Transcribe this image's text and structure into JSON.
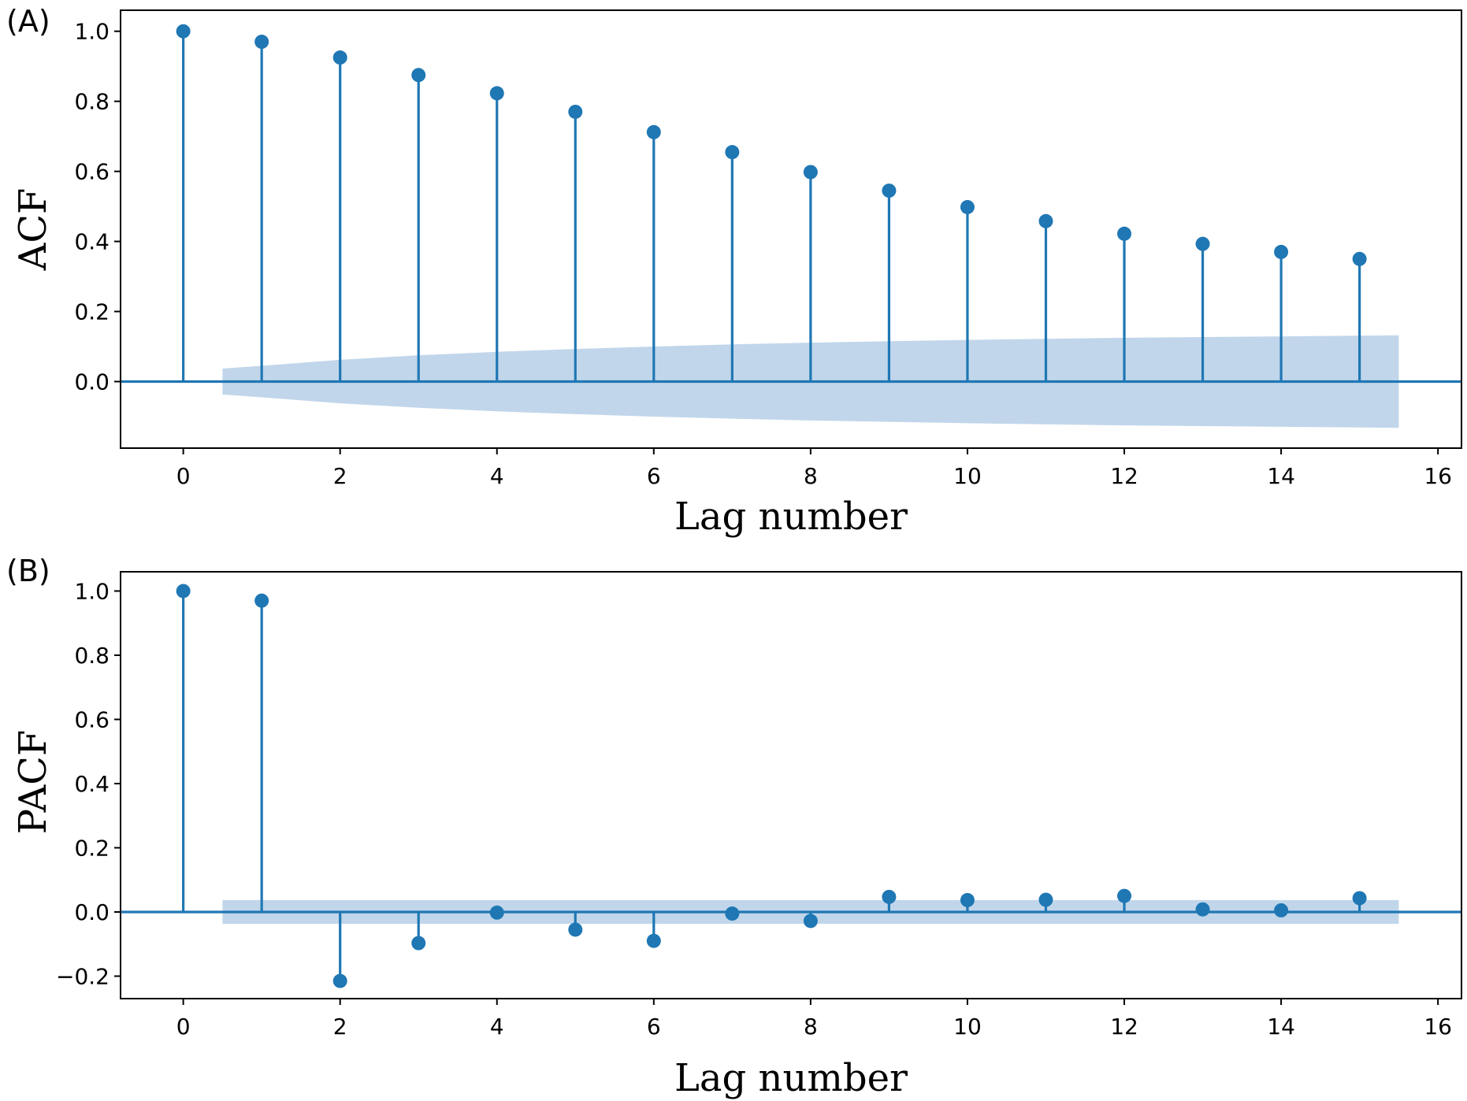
{
  "colors": {
    "stem": "#1f77b4",
    "confidence_band": "#c1d6ea",
    "axis": "#000000"
  },
  "chart_data": [
    {
      "type": "stem",
      "panel_label": "(A)",
      "xlabel": "Lag number",
      "ylabel": "ACF",
      "xlim": [
        -0.8,
        16.3
      ],
      "ylim": [
        -0.19,
        1.06
      ],
      "xticks": [
        0,
        2,
        4,
        6,
        8,
        10,
        12,
        14,
        16
      ],
      "xtick_labels": [
        "0",
        "2",
        "4",
        "6",
        "8",
        "10",
        "12",
        "14",
        "16"
      ],
      "yticks": [
        0.0,
        0.2,
        0.4,
        0.6,
        0.8,
        1.0
      ],
      "ytick_labels": [
        "0.0",
        "0.2",
        "0.4",
        "0.6",
        "0.8",
        "1.0"
      ],
      "x": [
        0,
        1,
        2,
        3,
        4,
        5,
        6,
        7,
        8,
        9,
        10,
        11,
        12,
        13,
        14,
        15
      ],
      "values": [
        1.0,
        0.97,
        0.925,
        0.875,
        0.823,
        0.77,
        0.712,
        0.655,
        0.598,
        0.545,
        0.498,
        0.458,
        0.422,
        0.393,
        0.37,
        0.35
      ],
      "confidence_band": {
        "x": [
          0.5,
          1,
          2,
          3,
          4,
          5,
          6,
          7,
          8,
          9,
          10,
          11,
          12,
          13,
          14,
          15,
          15.5
        ],
        "upper": [
          0.037,
          0.045,
          0.062,
          0.075,
          0.085,
          0.093,
          0.1,
          0.106,
          0.111,
          0.115,
          0.119,
          0.122,
          0.125,
          0.127,
          0.129,
          0.131,
          0.132
        ],
        "lower": [
          -0.037,
          -0.045,
          -0.062,
          -0.075,
          -0.085,
          -0.093,
          -0.1,
          -0.106,
          -0.111,
          -0.115,
          -0.119,
          -0.122,
          -0.125,
          -0.127,
          -0.129,
          -0.131,
          -0.132
        ]
      },
      "grid": false
    },
    {
      "type": "stem",
      "panel_label": "(B)",
      "xlabel": "Lag number",
      "ylabel": "PACF",
      "xlim": [
        -0.8,
        16.3
      ],
      "ylim": [
        -0.27,
        1.06
      ],
      "xticks": [
        0,
        2,
        4,
        6,
        8,
        10,
        12,
        14,
        16
      ],
      "xtick_labels": [
        "0",
        "2",
        "4",
        "6",
        "8",
        "10",
        "12",
        "14",
        "16"
      ],
      "yticks": [
        -0.2,
        0.0,
        0.2,
        0.4,
        0.6,
        0.8,
        1.0
      ],
      "ytick_labels": [
        "−0.2",
        "0.0",
        "0.2",
        "0.4",
        "0.6",
        "0.8",
        "1.0"
      ],
      "x": [
        0,
        1,
        2,
        3,
        4,
        5,
        6,
        7,
        8,
        9,
        10,
        11,
        12,
        13,
        14,
        15
      ],
      "values": [
        1.0,
        0.97,
        -0.215,
        -0.097,
        -0.002,
        -0.055,
        -0.09,
        -0.005,
        -0.028,
        0.047,
        0.037,
        0.038,
        0.05,
        0.008,
        0.005,
        0.043
      ],
      "confidence_band": {
        "x": [
          0.5,
          15.5
        ],
        "upper": [
          0.037,
          0.037
        ],
        "lower": [
          -0.037,
          -0.037
        ]
      },
      "grid": false
    }
  ]
}
